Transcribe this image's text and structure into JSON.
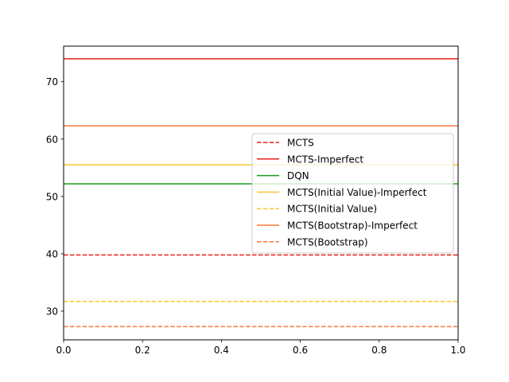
{
  "chart_data": {
    "type": "line",
    "title": "",
    "xlabel": "",
    "ylabel": "",
    "xlim": [
      0.0,
      1.0
    ],
    "ylim": [
      25,
      76.2
    ],
    "xticks": [
      "0.0",
      "0.2",
      "0.4",
      "0.6",
      "0.8",
      "1.0"
    ],
    "xtick_values": [
      0.0,
      0.2,
      0.4,
      0.6,
      0.8,
      1.0
    ],
    "yticks": [
      "30",
      "40",
      "50",
      "60",
      "70"
    ],
    "ytick_values": [
      30,
      40,
      50,
      60,
      70
    ],
    "grid": false,
    "legend_position": "center-right",
    "series": [
      {
        "name": "MCTS",
        "value": 39.8,
        "color": "#e8211b",
        "style": "dashed"
      },
      {
        "name": "MCTS-Imperfect",
        "value": 74.0,
        "color": "#e8211b",
        "style": "solid"
      },
      {
        "name": "DQN",
        "value": 52.2,
        "color": "#189d18",
        "style": "solid"
      },
      {
        "name": "MCTS(Initial Value)-Imperfect",
        "value": 55.5,
        "color": "#f5c72e",
        "style": "solid"
      },
      {
        "name": "MCTS(Initial Value)",
        "value": 31.7,
        "color": "#f5c72e",
        "style": "dashed"
      },
      {
        "name": "MCTS(Bootstrap)-Imperfect",
        "value": 62.3,
        "color": "#f5793a",
        "style": "solid"
      },
      {
        "name": "MCTS(Bootstrap)",
        "value": 27.3,
        "color": "#f5793a",
        "style": "dashed"
      }
    ]
  }
}
